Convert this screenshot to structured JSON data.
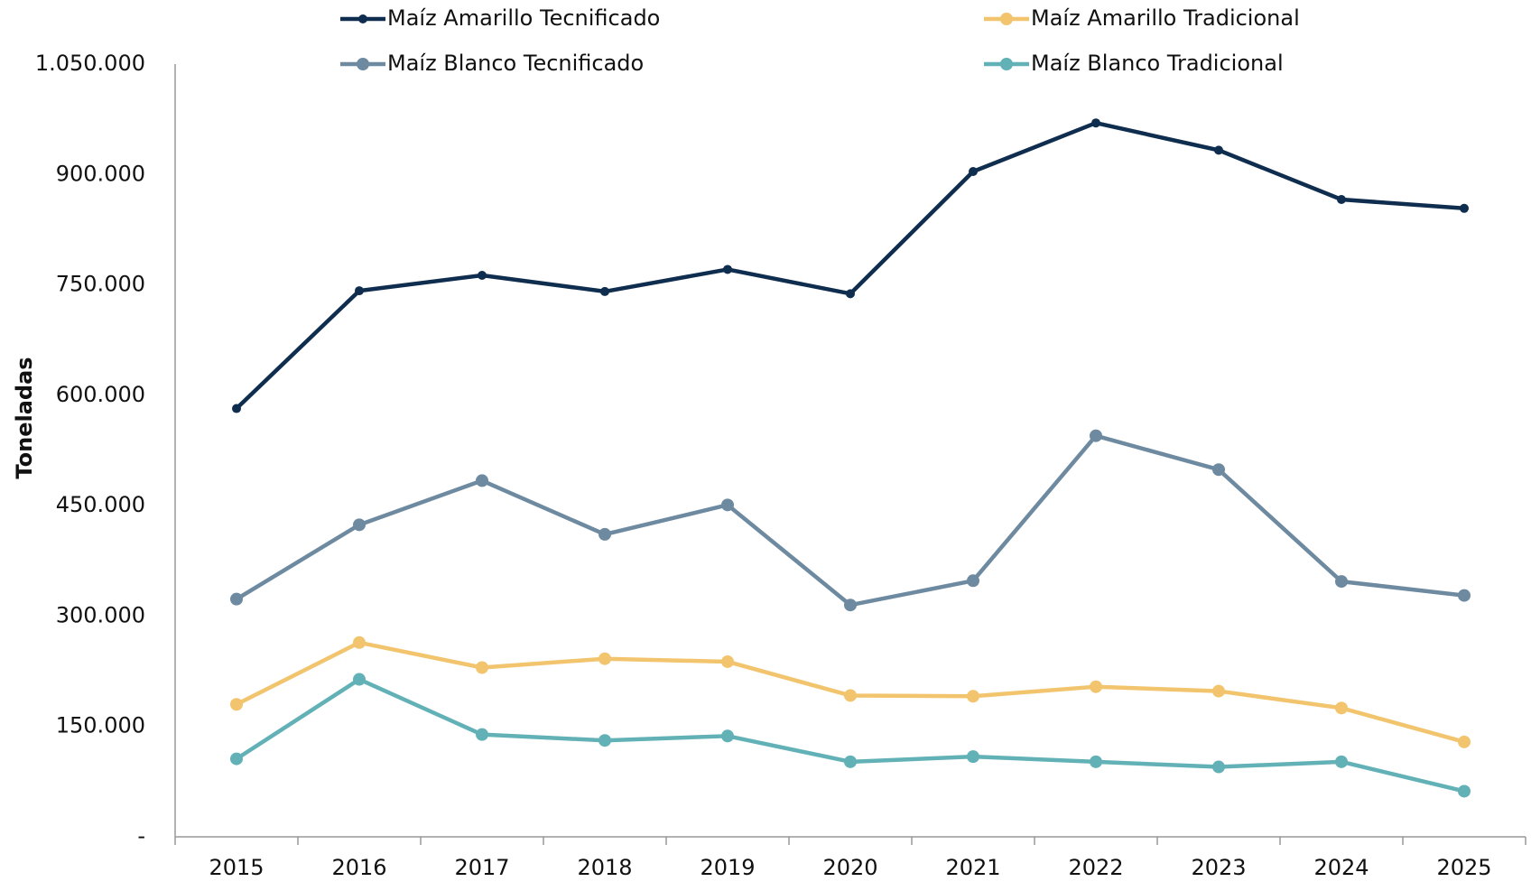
{
  "chart_data": {
    "type": "line",
    "y_label": "Toneladas",
    "categories": [
      "2015",
      "2016",
      "2017",
      "2018",
      "2019",
      "2020",
      "2021",
      "2022",
      "2023",
      "2024",
      "2025"
    ],
    "series": [
      {
        "name": "Maíz Amarillo Tecnificado",
        "color": "#0f2d4e",
        "values": [
          582000,
          742000,
          763000,
          741000,
          771000,
          738000,
          904000,
          970000,
          933000,
          866000,
          854000
        ]
      },
      {
        "name": "Maíz Amarillo Tradicional",
        "color": "#f2c46d",
        "values": [
          180000,
          264000,
          230000,
          242000,
          238000,
          192000,
          191000,
          204000,
          198000,
          175000,
          129000
        ]
      },
      {
        "name": "Maíz Blanco Tecnificado",
        "color": "#6e8aa0",
        "values": [
          323000,
          424000,
          484000,
          411000,
          451000,
          315000,
          348000,
          545000,
          499000,
          347000,
          328000
        ]
      },
      {
        "name": "Maíz Blanco Tradicional",
        "color": "#62b1b6",
        "values": [
          106000,
          214000,
          139000,
          131000,
          137000,
          102000,
          109000,
          102000,
          95000,
          102000,
          62000
        ]
      }
    ],
    "ylim": [
      0,
      1050000
    ],
    "yticks": [
      {
        "value": 0,
        "label": "-"
      },
      {
        "value": 150000,
        "label": "150.000"
      },
      {
        "value": 300000,
        "label": "300.000"
      },
      {
        "value": 450000,
        "label": "450.000"
      },
      {
        "value": 600000,
        "label": "600.000"
      },
      {
        "value": 750000,
        "label": "750.000"
      },
      {
        "value": 900000,
        "label": "900.000"
      },
      {
        "value": 1050000,
        "label": "1.050.000"
      }
    ],
    "grid": false
  }
}
